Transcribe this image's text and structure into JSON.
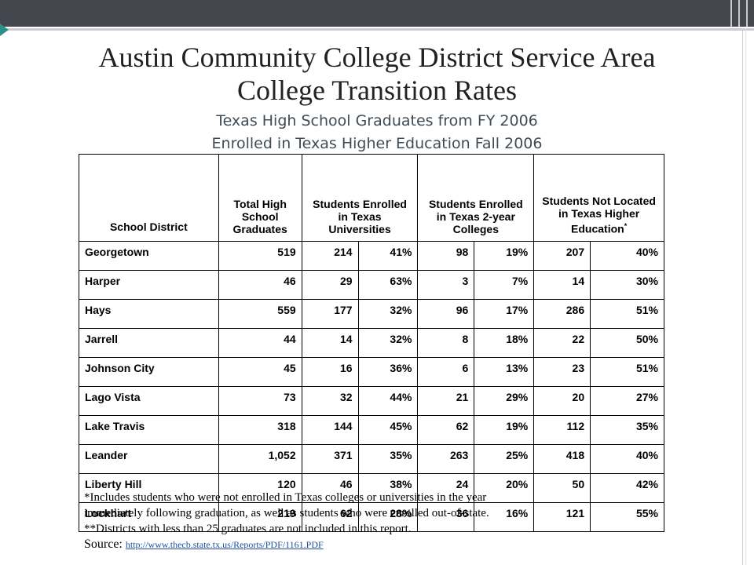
{
  "header": {
    "title_line1": "Austin Community College District Service Area",
    "title_line2": "College Transition Rates",
    "subtitle_line1": "Texas High School Graduates from FY 2006",
    "subtitle_line2": "Enrolled in Texas Higher Education Fall 2006"
  },
  "table": {
    "headers": {
      "district": "School District",
      "total": "Total High School Graduates",
      "universities": "Students Enrolled in Texas Universities",
      "two_year": "Students Enrolled in Texas 2-year Colleges",
      "not_located": "Students Not Located in Texas Higher Education",
      "not_located_mark": "*"
    },
    "rows": [
      {
        "district": "Georgetown",
        "total": "519",
        "univ_n": "214",
        "univ_pct": "41%",
        "col_n": "98",
        "col_pct": "19%",
        "nl_n": "207",
        "nl_pct": "40%"
      },
      {
        "district": "Harper",
        "total": "46",
        "univ_n": "29",
        "univ_pct": "63%",
        "col_n": "3",
        "col_pct": "7%",
        "nl_n": "14",
        "nl_pct": "30%"
      },
      {
        "district": "Hays",
        "total": "559",
        "univ_n": "177",
        "univ_pct": "32%",
        "col_n": "96",
        "col_pct": "17%",
        "nl_n": "286",
        "nl_pct": "51%"
      },
      {
        "district": "Jarrell",
        "total": "44",
        "univ_n": "14",
        "univ_pct": "32%",
        "col_n": "8",
        "col_pct": "18%",
        "nl_n": "22",
        "nl_pct": "50%"
      },
      {
        "district": "Johnson City",
        "total": "45",
        "univ_n": "16",
        "univ_pct": "36%",
        "col_n": "6",
        "col_pct": "13%",
        "nl_n": "23",
        "nl_pct": "51%"
      },
      {
        "district": "Lago Vista",
        "total": "73",
        "univ_n": "32",
        "univ_pct": "44%",
        "col_n": "21",
        "col_pct": "29%",
        "nl_n": "20",
        "nl_pct": "27%"
      },
      {
        "district": "Lake Travis",
        "total": "318",
        "univ_n": "144",
        "univ_pct": "45%",
        "col_n": "62",
        "col_pct": "19%",
        "nl_n": "112",
        "nl_pct": "35%"
      },
      {
        "district": "Leander",
        "total": "1,052",
        "univ_n": "371",
        "univ_pct": "35%",
        "col_n": "263",
        "col_pct": "25%",
        "nl_n": "418",
        "nl_pct": "40%"
      },
      {
        "district": "Liberty Hill",
        "total": "120",
        "univ_n": "46",
        "univ_pct": "38%",
        "col_n": "24",
        "col_pct": "20%",
        "nl_n": "50",
        "nl_pct": "42%"
      },
      {
        "district": "Lockhart",
        "total": "219",
        "univ_n": "62",
        "univ_pct": "28%",
        "col_n": "36",
        "col_pct": "16%",
        "nl_n": "121",
        "nl_pct": "55%"
      }
    ]
  },
  "footnotes": {
    "line1": "*Includes students who were not enrolled in Texas colleges or universities in the year",
    "line2": "immediately following graduation, as well as students who were enrolled out-of-state.",
    "line3": "**Districts with less than 25 graduates are not included in this report.",
    "source_label": "Source: ",
    "source_url": "http://www.thecb.state.tx.us/Reports/PDF/1161.PDF"
  },
  "colors": {
    "topbar": "#45474f",
    "accent_bullet": "#2b8f8a",
    "subtitle": "#3f4c55",
    "link": "#1f4f9e"
  }
}
